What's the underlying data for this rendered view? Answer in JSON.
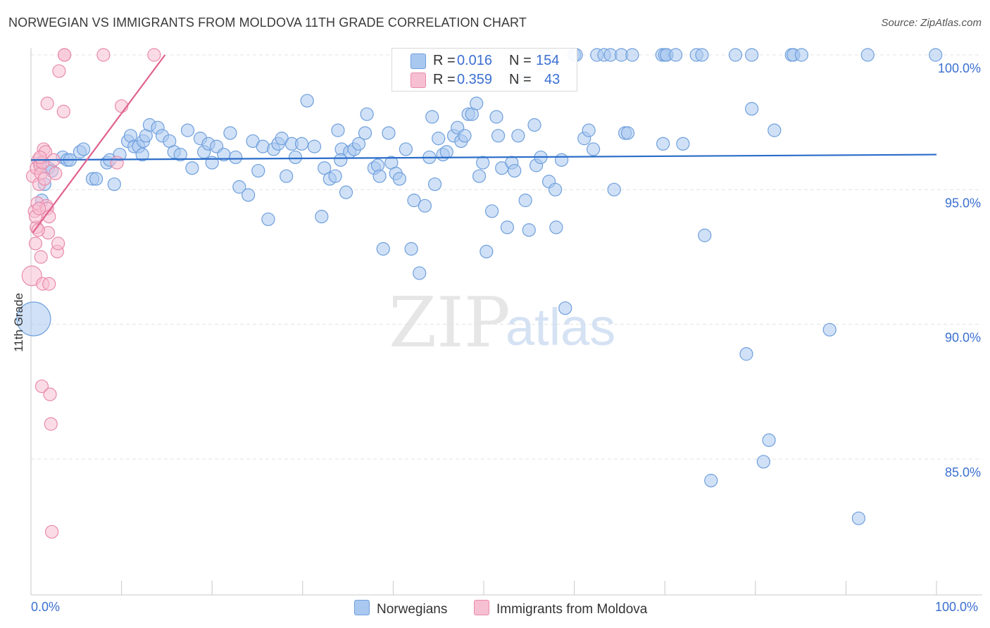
{
  "title": "NORWEGIAN VS IMMIGRANTS FROM MOLDOVA 11TH GRADE CORRELATION CHART",
  "source": "Source: ZipAtlas.com",
  "watermark": {
    "zip": "ZIP",
    "atlas": "atlas"
  },
  "colors": {
    "blue_fill": "#a9c8f0",
    "blue_stroke": "#6f9fdc",
    "blue_line": "#2a6cc9",
    "pink_fill": "#f7bfd2",
    "pink_stroke": "#e88aab",
    "pink_line": "#e0628e",
    "tick_label": "#3b6fd1",
    "grid": "#e3e3e3"
  },
  "legend": {
    "rows": [
      {
        "r_label": "R =",
        "r_value": "0.016",
        "n_label": "N =",
        "n_value": "154",
        "color": "#a9c8f0",
        "border": "#6f9fdc"
      },
      {
        "r_label": "R =",
        "r_value": "0.359",
        "n_label": "N =",
        "n_value": "43",
        "color": "#f7bfd2",
        "border": "#e88aab"
      }
    ]
  },
  "bottom_legend": [
    {
      "label": "Norwegians",
      "color": "#a9c8f0",
      "border": "#6f9fdc"
    },
    {
      "label": "Immigrants from Moldova",
      "color": "#f7bfd2",
      "border": "#e88aab"
    }
  ],
  "chart_data": {
    "type": "scatter",
    "title": "NORWEGIAN VS IMMIGRANTS FROM MOLDOVA 11TH GRADE CORRELATION CHART",
    "xlabel": "",
    "ylabel": "11th Grade",
    "xlim": [
      0,
      100
    ],
    "ylim": [
      80,
      100.5
    ],
    "x_tick_labels": {
      "left": "0.0%",
      "right": "100.0%"
    },
    "y_ticks": [
      {
        "value": 100,
        "label": "100.0%"
      },
      {
        "value": 95,
        "label": "95.0%"
      },
      {
        "value": 90,
        "label": "90.0%"
      },
      {
        "value": 85,
        "label": "85.0%"
      }
    ],
    "grid": true,
    "legend_position": "top-center",
    "series": [
      {
        "name": "Norwegians",
        "color": "#a9c8f0",
        "trend": {
          "x": [
            0,
            100
          ],
          "y": [
            96.1,
            96.3
          ]
        },
        "points": [
          [
            0.3,
            90.2
          ],
          [
            1.0,
            96.0
          ],
          [
            1.2,
            94.6
          ],
          [
            1.5,
            95.2
          ],
          [
            1.9,
            95.8
          ],
          [
            2.3,
            95.7
          ],
          [
            3.5,
            96.2
          ],
          [
            4.0,
            96.1
          ],
          [
            4.3,
            96.1
          ],
          [
            5.4,
            96.4
          ],
          [
            5.8,
            96.5
          ],
          [
            6.8,
            95.4
          ],
          [
            7.2,
            95.4
          ],
          [
            8.4,
            96.0
          ],
          [
            8.7,
            96.1
          ],
          [
            9.2,
            95.2
          ],
          [
            9.8,
            96.3
          ],
          [
            10.7,
            96.8
          ],
          [
            11.0,
            97.0
          ],
          [
            11.4,
            96.6
          ],
          [
            11.9,
            96.6
          ],
          [
            12.4,
            96.8
          ],
          [
            12.7,
            97.0
          ],
          [
            13.1,
            97.4
          ],
          [
            14.0,
            97.3
          ],
          [
            14.5,
            97.0
          ],
          [
            15.3,
            96.8
          ],
          [
            15.8,
            96.4
          ],
          [
            16.5,
            96.3
          ],
          [
            17.3,
            97.2
          ],
          [
            17.8,
            95.8
          ],
          [
            18.7,
            96.9
          ],
          [
            19.1,
            96.4
          ],
          [
            19.6,
            96.7
          ],
          [
            20.0,
            96.0
          ],
          [
            20.5,
            96.6
          ],
          [
            21.3,
            96.3
          ],
          [
            22.0,
            97.1
          ],
          [
            22.6,
            96.2
          ],
          [
            23.0,
            95.1
          ],
          [
            24.0,
            94.8
          ],
          [
            24.5,
            96.8
          ],
          [
            25.1,
            95.7
          ],
          [
            25.6,
            96.6
          ],
          [
            26.2,
            93.9
          ],
          [
            26.8,
            96.5
          ],
          [
            27.3,
            96.7
          ],
          [
            27.7,
            96.9
          ],
          [
            28.2,
            95.5
          ],
          [
            28.8,
            96.7
          ],
          [
            29.2,
            96.2
          ],
          [
            29.9,
            96.7
          ],
          [
            30.5,
            98.3
          ],
          [
            31.3,
            96.6
          ],
          [
            32.1,
            94.0
          ],
          [
            32.4,
            95.8
          ],
          [
            33.0,
            95.4
          ],
          [
            33.6,
            95.5
          ],
          [
            33.9,
            97.2
          ],
          [
            34.3,
            96.5
          ],
          [
            34.8,
            94.9
          ],
          [
            35.2,
            96.4
          ],
          [
            35.7,
            96.5
          ],
          [
            36.2,
            96.7
          ],
          [
            36.9,
            97.1
          ],
          [
            37.1,
            97.8
          ],
          [
            37.9,
            95.8
          ],
          [
            38.3,
            95.9
          ],
          [
            38.5,
            95.5
          ],
          [
            38.9,
            92.8
          ],
          [
            39.5,
            97.1
          ],
          [
            39.8,
            96.0
          ],
          [
            40.3,
            95.6
          ],
          [
            40.7,
            95.4
          ],
          [
            41.4,
            96.5
          ],
          [
            42.0,
            92.8
          ],
          [
            42.3,
            94.6
          ],
          [
            42.9,
            91.9
          ],
          [
            43.5,
            94.4
          ],
          [
            44.0,
            96.2
          ],
          [
            44.3,
            97.7
          ],
          [
            44.6,
            95.2
          ],
          [
            45.0,
            96.9
          ],
          [
            45.5,
            96.3
          ],
          [
            45.9,
            96.4
          ],
          [
            46.7,
            97.0
          ],
          [
            47.1,
            97.3
          ],
          [
            47.5,
            96.8
          ],
          [
            47.9,
            97.0
          ],
          [
            48.3,
            97.8
          ],
          [
            48.7,
            97.8
          ],
          [
            49.2,
            98.2
          ],
          [
            49.5,
            95.5
          ],
          [
            49.9,
            96.0
          ],
          [
            50.3,
            92.7
          ],
          [
            50.9,
            94.2
          ],
          [
            51.4,
            97.7
          ],
          [
            51.6,
            97.0
          ],
          [
            52.0,
            95.8
          ],
          [
            52.6,
            93.6
          ],
          [
            53.1,
            96.0
          ],
          [
            53.4,
            95.7
          ],
          [
            53.8,
            97.0
          ],
          [
            54.3,
            99.0
          ],
          [
            54.6,
            94.6
          ],
          [
            55.0,
            93.5
          ],
          [
            55.6,
            97.4
          ],
          [
            55.8,
            95.9
          ],
          [
            56.3,
            96.2
          ],
          [
            56.9,
            100.0
          ],
          [
            57.2,
            95.3
          ],
          [
            57.9,
            95.0
          ],
          [
            58.0,
            93.6
          ],
          [
            59.0,
            90.6
          ],
          [
            60.0,
            100.0
          ],
          [
            60.2,
            100.0
          ],
          [
            61.1,
            96.9
          ],
          [
            61.6,
            97.2
          ],
          [
            62.1,
            96.5
          ],
          [
            62.5,
            100.0
          ],
          [
            63.3,
            100.0
          ],
          [
            64.0,
            100.0
          ],
          [
            64.4,
            95.0
          ],
          [
            65.2,
            100.0
          ],
          [
            65.6,
            97.1
          ],
          [
            65.9,
            97.1
          ],
          [
            66.4,
            100.0
          ],
          [
            69.7,
            100.0
          ],
          [
            69.8,
            96.7
          ],
          [
            70.0,
            100.0
          ],
          [
            70.2,
            100.0
          ],
          [
            71.2,
            100.0
          ],
          [
            72.0,
            96.7
          ],
          [
            73.5,
            100.0
          ],
          [
            74.1,
            100.0
          ],
          [
            74.4,
            93.3
          ],
          [
            75.1,
            84.2
          ],
          [
            77.8,
            100.0
          ],
          [
            79.0,
            88.9
          ],
          [
            79.6,
            100.0
          ],
          [
            79.6,
            98.0
          ],
          [
            80.9,
            84.9
          ],
          [
            81.5,
            85.7
          ],
          [
            82.1,
            97.2
          ],
          [
            84.0,
            100.0
          ],
          [
            84.2,
            100.0
          ],
          [
            85.1,
            100.0
          ],
          [
            88.2,
            89.8
          ],
          [
            91.4,
            82.8
          ],
          [
            92.4,
            100.0
          ],
          [
            99.9,
            100.0
          ],
          [
            12.3,
            96.3
          ],
          [
            34.2,
            96.1
          ],
          [
            58.6,
            96.1
          ]
        ]
      },
      {
        "name": "Immigrants from Moldova",
        "color": "#f7bfd2",
        "trend": {
          "x": [
            0.2,
            14.8
          ],
          "y": [
            93.4,
            100.0
          ]
        },
        "points": [
          [
            0.1,
            91.8
          ],
          [
            0.2,
            95.5
          ],
          [
            0.4,
            94.2
          ],
          [
            0.5,
            93.0
          ],
          [
            0.6,
            93.6
          ],
          [
            0.6,
            95.8
          ],
          [
            0.7,
            94.5
          ],
          [
            0.8,
            96.1
          ],
          [
            0.9,
            95.2
          ],
          [
            1.0,
            95.9
          ],
          [
            1.1,
            92.5
          ],
          [
            1.1,
            95.6
          ],
          [
            1.2,
            87.7
          ],
          [
            1.3,
            91.5
          ],
          [
            1.4,
            96.5
          ],
          [
            1.5,
            95.4
          ],
          [
            1.6,
            96.4
          ],
          [
            1.7,
            94.4
          ],
          [
            1.8,
            94.3
          ],
          [
            1.9,
            93.4
          ],
          [
            2.0,
            91.5
          ],
          [
            2.1,
            87.4
          ],
          [
            2.2,
            86.3
          ],
          [
            2.3,
            82.3
          ],
          [
            2.5,
            96.1
          ],
          [
            2.7,
            95.6
          ],
          [
            2.9,
            92.7
          ],
          [
            3.0,
            93.0
          ],
          [
            3.1,
            99.4
          ],
          [
            3.6,
            97.9
          ],
          [
            3.7,
            100.0
          ],
          [
            8.0,
            100.0
          ],
          [
            9.5,
            96.0
          ],
          [
            10.0,
            98.1
          ],
          [
            13.6,
            100.0
          ],
          [
            0.5,
            94.0
          ],
          [
            0.9,
            94.3
          ],
          [
            1.3,
            96.0
          ],
          [
            2.0,
            94.0
          ],
          [
            0.8,
            93.5
          ],
          [
            1.0,
            96.2
          ],
          [
            3.7,
            100.0
          ],
          [
            1.8,
            98.2
          ]
        ]
      }
    ]
  }
}
